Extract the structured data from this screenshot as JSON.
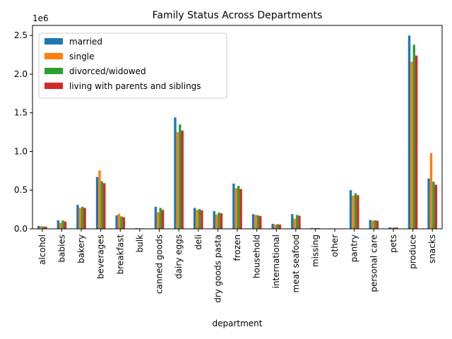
{
  "chart_data": {
    "type": "bar",
    "title": "Family Status Across Departments",
    "xlabel": "department",
    "ylabel": "",
    "y_offset_text": "1e6",
    "ylim": [
      0,
      2.63
    ],
    "yticks": [
      0.0,
      0.5,
      1.0,
      1.5,
      2.0,
      2.5
    ],
    "ytick_labels": [
      "0.0",
      "0.5",
      "1.0",
      "1.5",
      "2.0",
      "2.5"
    ],
    "grid": false,
    "legend_position": "upper-left",
    "categories": [
      "alcohol",
      "babies",
      "bakery",
      "beverages",
      "breakfast",
      "bulk",
      "canned goods",
      "dairy eggs",
      "deli",
      "dry goods pasta",
      "frozen",
      "household",
      "international",
      "meat seafood",
      "missing",
      "other",
      "pantry",
      "personal care",
      "pets",
      "produce",
      "snacks"
    ],
    "series": [
      {
        "name": "married",
        "color": "#1f77b4",
        "values": [
          0.038,
          0.11,
          0.31,
          0.67,
          0.175,
          0.009,
          0.285,
          1.44,
          0.27,
          0.23,
          0.585,
          0.19,
          0.065,
          0.19,
          0.011,
          0.006,
          0.5,
          0.115,
          0.02,
          2.5,
          0.65
        ]
      },
      {
        "name": "single",
        "color": "#ff7f0e",
        "values": [
          0.035,
          0.078,
          0.27,
          0.755,
          0.195,
          0.006,
          0.215,
          1.25,
          0.245,
          0.185,
          0.525,
          0.18,
          0.055,
          0.13,
          0.008,
          0.004,
          0.43,
          0.105,
          0.015,
          2.16,
          0.98
        ]
      },
      {
        "name": "divorced/widowed",
        "color": "#2ca02c",
        "values": [
          0.03,
          0.108,
          0.285,
          0.615,
          0.16,
          0.007,
          0.27,
          1.35,
          0.255,
          0.21,
          0.555,
          0.175,
          0.06,
          0.18,
          0.01,
          0.005,
          0.46,
          0.11,
          0.018,
          2.38,
          0.61
        ]
      },
      {
        "name": "living with parents and siblings",
        "color": "#d62728",
        "values": [
          0.028,
          0.095,
          0.27,
          0.59,
          0.15,
          0.006,
          0.245,
          1.27,
          0.24,
          0.2,
          0.515,
          0.165,
          0.055,
          0.17,
          0.009,
          0.004,
          0.435,
          0.105,
          0.017,
          2.24,
          0.57
        ]
      }
    ]
  }
}
